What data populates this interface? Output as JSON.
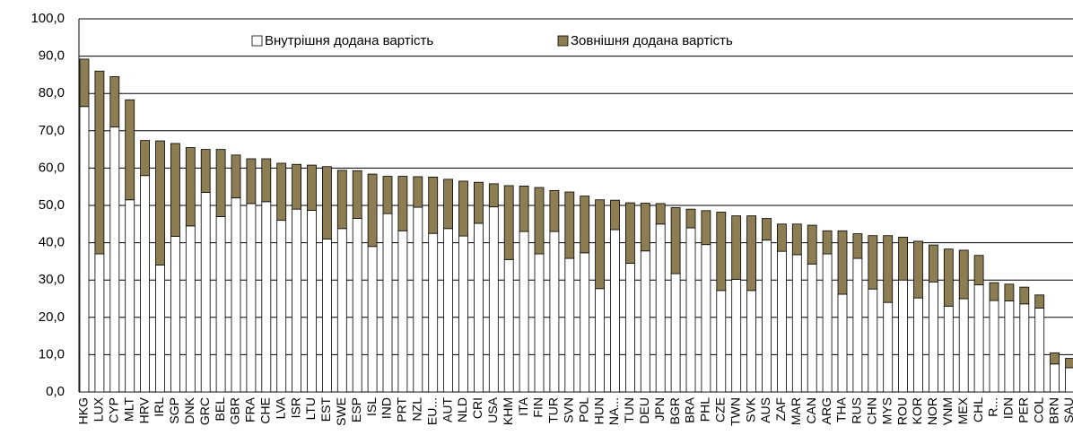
{
  "chart_data": {
    "type": "stacked_bar",
    "categories": [
      "HKG",
      "LUX",
      "CYP",
      "MLT",
      "HRV",
      "IRL",
      "SGP",
      "DNK",
      "GRC",
      "BEL",
      "GBR",
      "FRA",
      "CHE",
      "LVA",
      "ISR",
      "LTU",
      "EST",
      "SWE",
      "ESP",
      "ISL",
      "IND",
      "PRT",
      "NZL",
      "EU...",
      "AUT",
      "NLD",
      "CRI",
      "USA",
      "KHM",
      "ITA",
      "FIN",
      "TUR",
      "SVN",
      "POL",
      "HUN",
      "NA...",
      "TUN",
      "DEU",
      "JPN",
      "BGR",
      "BRA",
      "PHL",
      "CZE",
      "TWN",
      "SVK",
      "AUS",
      "ZAF",
      "MAR",
      "CAN",
      "ARG",
      "THA",
      "RUS",
      "CHN",
      "MYS",
      "ROU",
      "KOR",
      "NOR",
      "VNM",
      "MEX",
      "CHL",
      "R...",
      "IDN",
      "PER",
      "COL",
      "BRN",
      "SAU"
    ],
    "series": [
      {
        "name": "Внутрішня додана вартість",
        "color": "#ffffff",
        "values": [
          76.5,
          37,
          71,
          51.5,
          58,
          34,
          41.7,
          44.5,
          53.5,
          47,
          52,
          50.5,
          51,
          46,
          49,
          48.7,
          41,
          43.8,
          46.5,
          39,
          47.8,
          43.2,
          49.5,
          42.5,
          43.8,
          41.8,
          45.2,
          49.6,
          35.5,
          43,
          37,
          43,
          35.8,
          37.3,
          27.7,
          43.5,
          34.5,
          37.8,
          45,
          31.7,
          44,
          39.5,
          27.2,
          30.2,
          27.2,
          40.7,
          37.7,
          36.8,
          34.3,
          37,
          26.2,
          35.8,
          27.6,
          24,
          30,
          25.2,
          29.5,
          23,
          25,
          28.7,
          24.5,
          24.4,
          23.6,
          22.5,
          7.5,
          6.5
        ]
      },
      {
        "name": "Зовнішня додана вартість",
        "color": "#8c7e52",
        "values": [
          12.7,
          49,
          13.5,
          26.8,
          9.4,
          33.3,
          24.9,
          21,
          11.5,
          18,
          11.5,
          12,
          11.5,
          15.3,
          12,
          12.1,
          19.4,
          15.6,
          12.8,
          19.4,
          10,
          14.6,
          8.2,
          15.1,
          13.2,
          14.7,
          11,
          6.2,
          19.8,
          12.2,
          17.8,
          11,
          17.8,
          15.2,
          23.8,
          7.9,
          16.2,
          12.8,
          5.5,
          17.7,
          5,
          9.1,
          21,
          17,
          20,
          5.8,
          7.3,
          8.2,
          10.4,
          6.2,
          17,
          6.6,
          14.3,
          17.9,
          11.5,
          15.2,
          9.9,
          15.3,
          13,
          7.9,
          4.8,
          4.5,
          4.5,
          3.5,
          3,
          2.5
        ]
      }
    ],
    "ylim": [
      0,
      100
    ],
    "yticks": [
      {
        "value": 0,
        "label": "0,0"
      },
      {
        "value": 10,
        "label": "10,0"
      },
      {
        "value": 20,
        "label": "20,0"
      },
      {
        "value": 30,
        "label": "30,0"
      },
      {
        "value": 40,
        "label": "40,0"
      },
      {
        "value": 50,
        "label": "50,0"
      },
      {
        "value": 60,
        "label": "60,0"
      },
      {
        "value": 70,
        "label": "70,0"
      },
      {
        "value": 80,
        "label": "80,0"
      },
      {
        "value": 90,
        "label": "90,0"
      },
      {
        "value": 100,
        "label": "100,0"
      }
    ],
    "grid": true,
    "legend": "top"
  }
}
